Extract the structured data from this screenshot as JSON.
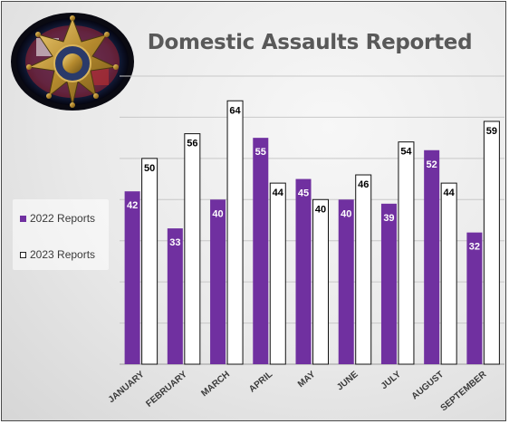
{
  "chart_data": {
    "type": "bar",
    "title": "Domestic Assaults Reported",
    "categories": [
      "JANUARY",
      "FEBRUARY",
      "MARCH",
      "APRIL",
      "MAY",
      "JUNE",
      "JULY",
      "AUGUST",
      "SEPTEMBER"
    ],
    "series": [
      {
        "name": "2022 Reports",
        "values": [
          42,
          33,
          40,
          55,
          45,
          40,
          39,
          52,
          32
        ],
        "color": "#7030a0"
      },
      {
        "name": "2023 Reports",
        "values": [
          50,
          56,
          64,
          44,
          40,
          46,
          54,
          44,
          59
        ],
        "color": "#ffffff"
      }
    ],
    "ylim": [
      0,
      70
    ],
    "grid": true,
    "legend_position": "left",
    "data_labels": true
  },
  "logo": {
    "icon": "sheriff-star-badge-icon"
  },
  "colors": {
    "bar2022": "#7030a0",
    "bar2023": "#ffffff",
    "title": "#595959",
    "border": "#4a4a4a",
    "logo_ring": "#1c1c2e"
  }
}
